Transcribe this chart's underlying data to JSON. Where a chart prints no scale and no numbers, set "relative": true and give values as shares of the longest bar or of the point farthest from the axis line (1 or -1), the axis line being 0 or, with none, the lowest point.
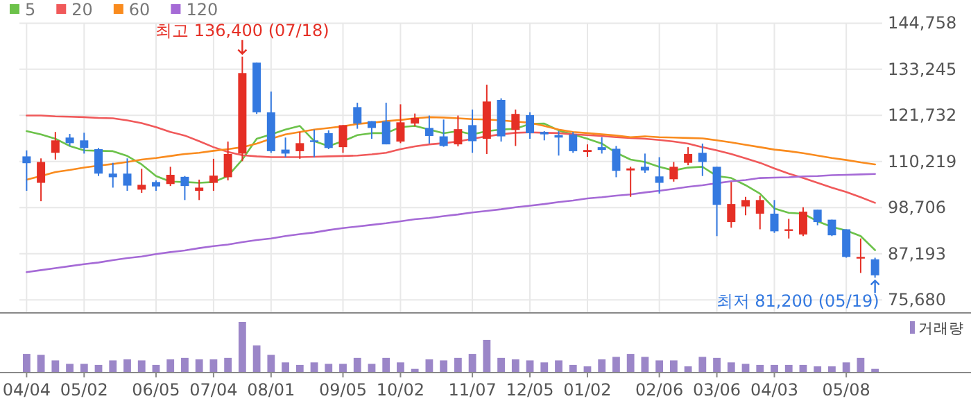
{
  "chart_data": [
    {
      "type": "candlestick",
      "categories": [
        null,
        null,
        null,
        null,
        null,
        null,
        null,
        null,
        null,
        null,
        null,
        null,
        null,
        null,
        null,
        null,
        null,
        null,
        null,
        null,
        null,
        null,
        null,
        null,
        null,
        null,
        null,
        null,
        null,
        null,
        null,
        null,
        null,
        null,
        null,
        null,
        null,
        null,
        null,
        null,
        null,
        null,
        null,
        null,
        null,
        null,
        null,
        null,
        null,
        null,
        null,
        null,
        null,
        null,
        null,
        null,
        null,
        null,
        null,
        null
      ],
      "ohlc": [
        [
          111500,
          113000,
          102900,
          109800
        ],
        [
          104900,
          111000,
          100300,
          110100
        ],
        [
          112400,
          117600,
          110700,
          115500
        ],
        [
          116200,
          117100,
          114100,
          114800
        ],
        [
          115500,
          117400,
          112200,
          113600
        ],
        [
          113300,
          113600,
          106600,
          107200
        ],
        [
          107200,
          109900,
          103700,
          106300
        ],
        [
          107200,
          111000,
          102900,
          104200
        ],
        [
          103200,
          108400,
          102400,
          104400
        ],
        [
          105100,
          105500,
          102900,
          104000
        ],
        [
          104600,
          108900,
          104100,
          106900
        ],
        [
          106400,
          106600,
          100600,
          104100
        ],
        [
          102900,
          105700,
          100600,
          103700
        ],
        [
          104900,
          110900,
          102900,
          106700
        ],
        [
          106300,
          115200,
          105500,
          112100
        ],
        [
          112200,
          136400,
          110300,
          132300
        ],
        [
          134900,
          134900,
          122100,
          122500
        ],
        [
          122500,
          127700,
          112400,
          112800
        ],
        [
          113200,
          116200,
          111300,
          112200
        ],
        [
          112800,
          117600,
          110900,
          114800
        ],
        [
          115500,
          118200,
          111300,
          115100
        ],
        [
          117300,
          118000,
          113300,
          113600
        ],
        [
          113800,
          119300,
          112400,
          119300
        ],
        [
          123800,
          124900,
          118400,
          119700
        ],
        [
          120300,
          120300,
          115900,
          118600
        ],
        [
          120200,
          124900,
          114500,
          114500
        ],
        [
          115200,
          124500,
          114800,
          120000
        ],
        [
          119700,
          122200,
          119000,
          121100
        ],
        [
          118600,
          121700,
          114700,
          116600
        ],
        [
          116500,
          120700,
          113900,
          114100
        ],
        [
          114500,
          121700,
          114000,
          118300
        ],
        [
          119300,
          123200,
          112400,
          115300
        ],
        [
          115900,
          129400,
          112100,
          125200
        ],
        [
          125600,
          126000,
          115200,
          116500
        ],
        [
          118100,
          123200,
          114100,
          122100
        ],
        [
          121800,
          122500,
          115900,
          117300
        ],
        [
          117600,
          117800,
          115500,
          117000
        ],
        [
          116800,
          117800,
          111700,
          116200
        ],
        [
          117000,
          117600,
          112400,
          112800
        ],
        [
          112600,
          114500,
          111400,
          113100
        ],
        [
          113800,
          116300,
          112200,
          113100
        ],
        [
          113400,
          114100,
          106300,
          107900
        ],
        [
          108000,
          108900,
          101400,
          108500
        ],
        [
          108900,
          112200,
          107400,
          108000
        ],
        [
          106500,
          111300,
          102200,
          104900
        ],
        [
          105800,
          110100,
          105200,
          108900
        ],
        [
          109900,
          113800,
          109300,
          112100
        ],
        [
          112400,
          114700,
          106600,
          110100
        ],
        [
          108900,
          108900,
          91600,
          99400
        ],
        [
          95100,
          105100,
          93700,
          99600
        ],
        [
          99000,
          101400,
          96800,
          100600
        ],
        [
          97200,
          101700,
          93300,
          100600
        ],
        [
          97200,
          100600,
          92400,
          92800
        ],
        [
          93000,
          95900,
          91000,
          93300
        ],
        [
          92000,
          98800,
          91600,
          97700
        ],
        [
          98200,
          98200,
          94300,
          95100
        ],
        [
          95700,
          95700,
          91600,
          91800
        ],
        [
          93300,
          93300,
          86200,
          86400
        ],
        [
          86100,
          91000,
          82400,
          86400
        ],
        [
          85800,
          86200,
          81200,
          81800
        ]
      ],
      "colors": [
        "#3479e0",
        "#e52f25",
        "#e52f25",
        "#3479e0",
        "#3479e0",
        "#3479e0",
        "#3479e0",
        "#3479e0",
        "#e52f25",
        "#3479e0",
        "#e52f25",
        "#3479e0",
        "#e52f25",
        "#e52f25",
        "#e52f25",
        "#e52f25",
        "#3479e0",
        "#3479e0",
        "#3479e0",
        "#e52f25",
        "#3479e0",
        "#3479e0",
        "#e52f25",
        "#3479e0",
        "#3479e0",
        "#3479e0",
        "#e52f25",
        "#e52f25",
        "#3479e0",
        "#3479e0",
        "#e52f25",
        "#3479e0",
        "#e52f25",
        "#3479e0",
        "#e52f25",
        "#3479e0",
        "#3479e0",
        "#3479e0",
        "#3479e0",
        "#e52f25",
        "#3479e0",
        "#3479e0",
        "#e52f25",
        "#3479e0",
        "#3479e0",
        "#e52f25",
        "#e52f25",
        "#3479e0",
        "#3479e0",
        "#e52f25",
        "#e52f25",
        "#e52f25",
        "#3479e0",
        "#e52f25",
        "#e52f25",
        "#3479e0",
        "#3479e0",
        "#3479e0",
        "#e52f25",
        "#3479e0"
      ],
      "series": [
        {
          "name": "5",
          "type": "line",
          "color": "#6cc24a",
          "values": [
            117800,
            117000,
            115900,
            114100,
            113000,
            112900,
            112800,
            111600,
            109500,
            106600,
            105200,
            105100,
            104900,
            105100,
            106600,
            110700,
            115900,
            117000,
            118200,
            119100,
            115300,
            114100,
            115300,
            116800,
            117300,
            117300,
            118800,
            119100,
            118200,
            117300,
            117800,
            117000,
            117800,
            118200,
            118400,
            119600,
            119700,
            118000,
            117000,
            115900,
            114700,
            112400,
            110700,
            110100,
            108900,
            108000,
            108700,
            108900,
            106600,
            106100,
            104300,
            102200,
            98500,
            97400,
            97200,
            95300,
            93900,
            93000,
            91600,
            88100
          ]
        },
        {
          "name": "20",
          "type": "line",
          "color": "#f0595a",
          "values": [
            121700,
            121700,
            121500,
            121400,
            121300,
            121100,
            121000,
            120500,
            119800,
            118800,
            117600,
            116700,
            115300,
            113800,
            112600,
            111800,
            111500,
            111300,
            111300,
            111300,
            111400,
            111500,
            111600,
            111700,
            112000,
            112400,
            113300,
            114000,
            114500,
            114800,
            115200,
            115900,
            116500,
            117000,
            117400,
            117500,
            117400,
            117300,
            117000,
            116800,
            116600,
            116300,
            116100,
            115900,
            115600,
            115200,
            114700,
            113800,
            113000,
            112100,
            111000,
            109900,
            108500,
            107200,
            106100,
            104900,
            103700,
            102600,
            101300,
            99900
          ]
        },
        {
          "name": "60",
          "type": "line",
          "color": "#f98b1e",
          "values": [
            105700,
            106600,
            107600,
            108100,
            108700,
            109200,
            109600,
            110100,
            110700,
            111100,
            111600,
            112100,
            112400,
            112900,
            113300,
            113800,
            114700,
            115900,
            117000,
            117600,
            118200,
            118600,
            119000,
            119600,
            119900,
            120300,
            120600,
            121000,
            121300,
            121200,
            121000,
            120800,
            120700,
            120500,
            120200,
            119900,
            119100,
            118200,
            117600,
            117300,
            117000,
            116700,
            116300,
            116500,
            116300,
            116200,
            116100,
            116000,
            115500,
            115000,
            114400,
            113800,
            113200,
            112800,
            112300,
            111700,
            111100,
            110600,
            110000,
            109500
          ]
        },
        {
          "name": "120",
          "type": "line",
          "color": "#a56ad6",
          "values": [
            82600,
            83100,
            83600,
            84100,
            84600,
            85000,
            85600,
            86100,
            86500,
            87100,
            87600,
            88000,
            88600,
            89100,
            89500,
            90100,
            90600,
            91000,
            91600,
            92100,
            92500,
            93100,
            93600,
            94000,
            94400,
            94800,
            95300,
            95800,
            96100,
            96600,
            97000,
            97500,
            97900,
            98300,
            98800,
            99200,
            99600,
            100100,
            100500,
            101000,
            101300,
            101700,
            102000,
            102500,
            102900,
            103400,
            103900,
            104300,
            104800,
            105300,
            105600,
            106100,
            106200,
            106300,
            106500,
            106600,
            106800,
            106900,
            107000,
            107100
          ]
        }
      ],
      "ylim": [
        72600,
        144758
      ],
      "yticks": [
        {
          "value": 75680,
          "label": "75,680"
        },
        {
          "value": 87193,
          "label": "87,193"
        },
        {
          "value": 98706,
          "label": "98,706"
        },
        {
          "value": 110219,
          "label": "110,219"
        },
        {
          "value": 121732,
          "label": "121,732"
        },
        {
          "value": 133245,
          "label": "133,245"
        },
        {
          "value": 144758,
          "label": "144,758"
        }
      ],
      "grid": true,
      "legend": "top left",
      "tick_labels": "y",
      "annotations": [
        "최고 136,400 (07/18)",
        "최저 81,200 (05/19)"
      ]
    },
    {
      "type": "bar",
      "categories": [
        "04/04",
        null,
        null,
        null,
        "05/02",
        null,
        null,
        null,
        null,
        "06/05",
        null,
        null,
        null,
        "07/04",
        null,
        null,
        null,
        "08/01",
        null,
        null,
        null,
        null,
        "09/05",
        null,
        null,
        null,
        "10/02",
        null,
        null,
        null,
        null,
        "11/07",
        null,
        null,
        null,
        "12/05",
        null,
        null,
        null,
        "01/02",
        null,
        null,
        null,
        null,
        "02/06",
        null,
        null,
        null,
        "03/06",
        null,
        null,
        null,
        "04/03",
        null,
        null,
        null,
        null,
        "05/08",
        null,
        null
      ],
      "relative": true,
      "series": [
        {
          "name": "거래량",
          "color": "#9b86c8",
          "values": [
            0.36,
            0.34,
            0.23,
            0.16,
            0.16,
            0.14,
            0.23,
            0.25,
            0.23,
            0.14,
            0.25,
            0.28,
            0.25,
            0.25,
            0.28,
            1,
            0.53,
            0.34,
            0.19,
            0.14,
            0.19,
            0.16,
            0.16,
            0.28,
            0.16,
            0.28,
            0.19,
            0.06,
            0.25,
            0.23,
            0.28,
            0.36,
            0.64,
            0.28,
            0.25,
            0.23,
            0.19,
            0.23,
            0.14,
            0.11,
            0.25,
            0.3,
            0.36,
            0.3,
            0.23,
            0.23,
            0.11,
            0.3,
            0.28,
            0.19,
            0.16,
            0.14,
            0.14,
            0.14,
            0.14,
            0.11,
            0.11,
            0.19,
            0.28,
            0.06
          ]
        }
      ],
      "legend": "top right",
      "tick_labels": "x"
    }
  ]
}
